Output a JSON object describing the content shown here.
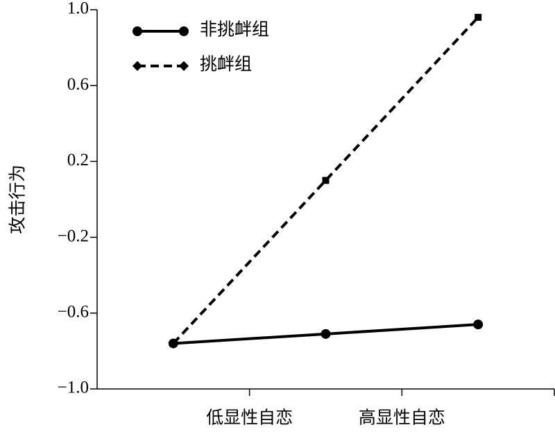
{
  "chart_data": {
    "type": "line",
    "y_label": "攻击行为",
    "categories": [
      "低显性自恋",
      "高显性自恋",
      null
    ],
    "series": [
      {
        "name": "非挑衅组",
        "color": "#000000",
        "dash": false,
        "marker": "circle",
        "values": [
          -0.76,
          -0.71,
          -0.66
        ]
      },
      {
        "name": "挑衅组",
        "color": "#000000",
        "dash": true,
        "marker": "square",
        "values": [
          -0.76,
          0.1,
          0.96
        ]
      }
    ],
    "ylim": [
      -1.0,
      1.0
    ],
    "yticks": [
      {
        "value": -1.0,
        "label": "−1.0"
      },
      {
        "value": -0.6,
        "label": "−0.6"
      },
      {
        "value": -0.2,
        "label": "−0.2"
      },
      0.2,
      0.6,
      {
        "value": 1.0,
        "label": "1.0"
      }
    ],
    "legend": "upper-left"
  }
}
